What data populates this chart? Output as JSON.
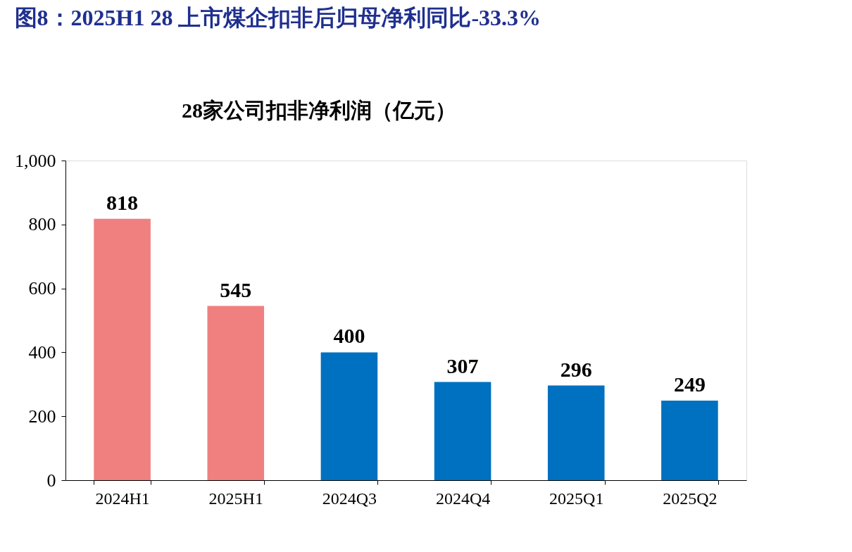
{
  "chart_data": {
    "type": "bar",
    "title": "图8：2025H1 28 上市煤企扣非后归母净利同比-33.3%",
    "subtitle": "28家公司扣非净利润（亿元）",
    "categories": [
      "2024H1",
      "2025H1",
      "2024Q3",
      "2024Q4",
      "2025Q1",
      "2025Q2"
    ],
    "values": [
      818,
      545,
      400,
      307,
      296,
      249
    ],
    "colors": [
      "#f08080",
      "#f08080",
      "#0070c0",
      "#0070c0",
      "#0070c0",
      "#0070c0"
    ],
    "ylim": [
      0,
      1000
    ],
    "yticks": [
      0,
      200,
      400,
      600,
      800,
      {
        "value": 1000,
        "label": "1,000"
      }
    ],
    "data_labels": true,
    "grid": false
  }
}
